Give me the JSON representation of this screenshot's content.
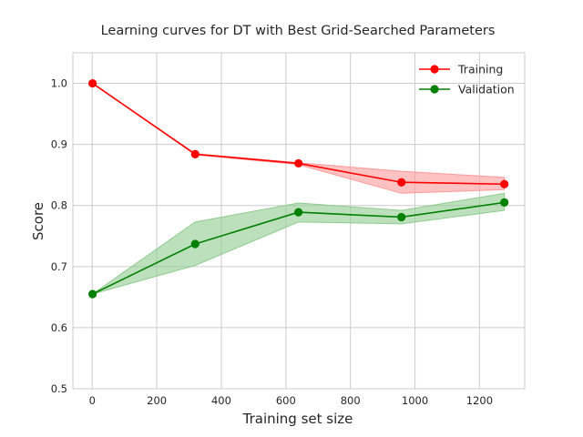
{
  "chart_data": {
    "type": "line",
    "title": "Learning curves for DT with Best Grid-Searched Parameters",
    "xlabel": "Training set size",
    "ylabel": "Score",
    "xlim": [
      -60,
      1340
    ],
    "ylim": [
      0.5,
      1.05
    ],
    "xticks": [
      0,
      200,
      400,
      600,
      800,
      1000,
      1200
    ],
    "yticks": [
      0.5,
      0.6,
      0.7,
      0.8,
      0.9,
      1.0
    ],
    "xtick_labels": [
      "0",
      "200",
      "400",
      "600",
      "800",
      "1000",
      "1200"
    ],
    "ytick_labels": [
      "0.5",
      "0.6",
      "0.7",
      "0.8",
      "0.9",
      "1.0"
    ],
    "grid": true,
    "legend_position": "top-right",
    "x": [
      1,
      319,
      639,
      958,
      1277
    ],
    "series": [
      {
        "name": "Training",
        "color": "#ff0000",
        "band_color": "#ff9999",
        "values": [
          1.0,
          0.884,
          0.869,
          0.838,
          0.835
        ],
        "upper": [
          1.0,
          0.885,
          0.87,
          0.856,
          0.846
        ],
        "lower": [
          1.0,
          0.883,
          0.867,
          0.82,
          0.826
        ]
      },
      {
        "name": "Validation",
        "color": "#008000",
        "band_color": "#8fcc8f",
        "values": [
          0.655,
          0.737,
          0.789,
          0.781,
          0.805
        ],
        "upper": [
          0.655,
          0.773,
          0.804,
          0.792,
          0.82
        ],
        "lower": [
          0.655,
          0.702,
          0.773,
          0.77,
          0.792
        ]
      }
    ]
  }
}
